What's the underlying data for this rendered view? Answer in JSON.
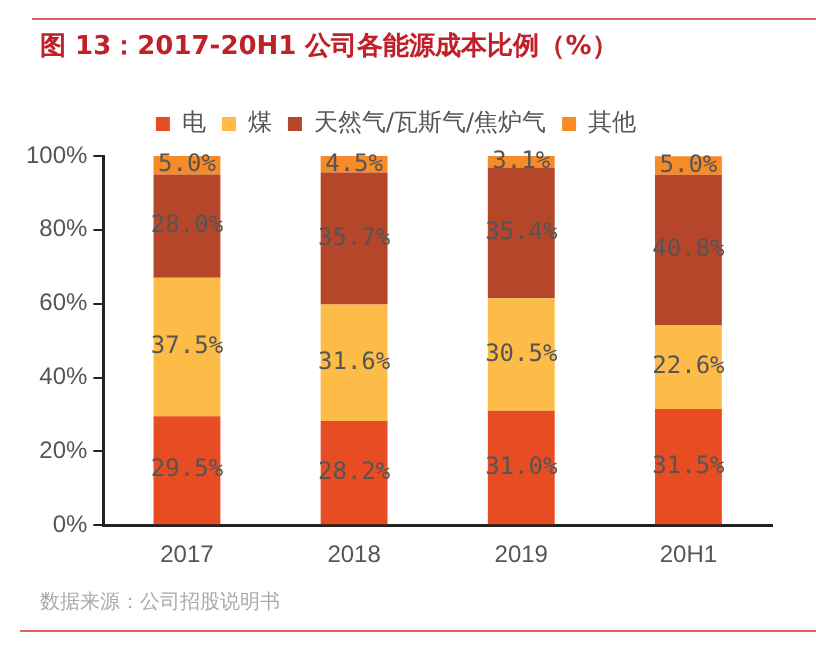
{
  "chart_data": {
    "type": "bar",
    "stacked": true,
    "title": "图 13：2017-20H1 公司各能源成本比例（%）",
    "categories": [
      "2017",
      "2018",
      "2019",
      "20H1"
    ],
    "series": [
      {
        "name": "电",
        "color": "#e84c22",
        "values": [
          29.5,
          28.2,
          31.0,
          31.5
        ],
        "value_labels": [
          "29.5%",
          "28.2%",
          "31.0%",
          "31.5%"
        ]
      },
      {
        "name": "煤",
        "color": "#fdbb48",
        "values": [
          37.5,
          31.6,
          30.5,
          22.6
        ],
        "value_labels": [
          "37.5%",
          "31.6%",
          "30.5%",
          "22.6%"
        ]
      },
      {
        "name": "天然气/瓦斯气/焦炉气",
        "color": "#b5462a",
        "values": [
          28.0,
          35.7,
          35.4,
          40.8
        ],
        "value_labels": [
          "28.0%",
          "35.7%",
          "35.4%",
          "40.8%"
        ]
      },
      {
        "name": "其他",
        "color": "#f68b28",
        "values": [
          5.0,
          4.5,
          3.1,
          5.0
        ],
        "value_labels": [
          "5.0%",
          "4.5%",
          "3.1%",
          "5.0%"
        ]
      }
    ],
    "ylim": [
      0,
      100
    ],
    "yticks": [
      {
        "value": 0,
        "label": "0%"
      },
      {
        "value": 20,
        "label": "20%"
      },
      {
        "value": 40,
        "label": "40%"
      },
      {
        "value": 60,
        "label": "60%"
      },
      {
        "value": 80,
        "label": "80%"
      },
      {
        "value": 100,
        "label": "100%"
      }
    ],
    "grid": false,
    "legend": "top",
    "annotations": [
      "数据来源：公司招股说明书"
    ]
  }
}
